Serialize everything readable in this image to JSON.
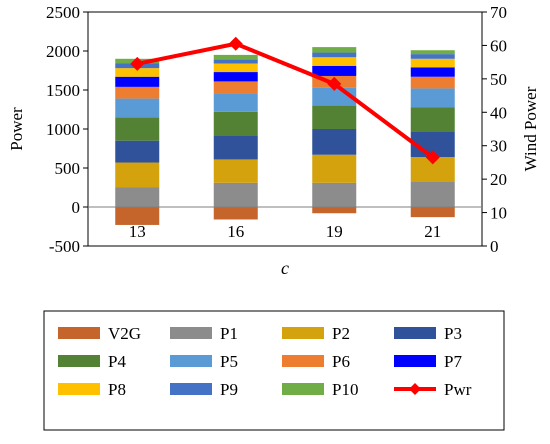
{
  "chart_data": {
    "type": "bar",
    "stacked": true,
    "categories": [
      "13",
      "16",
      "19",
      "21"
    ],
    "xlabel": "c",
    "ylabel": "Power",
    "y2label": "Wind Power",
    "ylim": [
      -500,
      2500
    ],
    "y2lim": [
      0,
      70
    ],
    "yticks": [
      "-500",
      "0",
      "500",
      "1000",
      "1500",
      "2000",
      "2500"
    ],
    "y2ticks": [
      "0",
      "10",
      "20",
      "30",
      "40",
      "50",
      "60",
      "70"
    ],
    "grid": false,
    "legend_position": "bottom",
    "series": [
      {
        "name": "V2G",
        "color": "#c5642b",
        "values": [
          -230,
          -160,
          -80,
          -130
        ]
      },
      {
        "name": "P1",
        "color": "#8c8c8c",
        "values": [
          250,
          310,
          310,
          330
        ]
      },
      {
        "name": "P2",
        "color": "#d4a20d",
        "values": [
          320,
          300,
          360,
          310
        ]
      },
      {
        "name": "P3",
        "color": "#2f529b",
        "values": [
          280,
          310,
          330,
          330
        ]
      },
      {
        "name": "P4",
        "color": "#548235",
        "values": [
          300,
          300,
          300,
          310
        ]
      },
      {
        "name": "P5",
        "color": "#5b9bd5",
        "values": [
          240,
          240,
          230,
          240
        ]
      },
      {
        "name": "P6",
        "color": "#ed7d31",
        "values": [
          150,
          150,
          150,
          150
        ]
      },
      {
        "name": "P7",
        "color": "#0000ff",
        "values": [
          130,
          120,
          130,
          120
        ]
      },
      {
        "name": "P8",
        "color": "#ffc000",
        "values": [
          110,
          110,
          110,
          110
        ]
      },
      {
        "name": "P9",
        "color": "#4472c4",
        "values": [
          60,
          50,
          60,
          60
        ]
      },
      {
        "name": "P10",
        "color": "#70ad47",
        "values": [
          60,
          60,
          70,
          50
        ]
      }
    ],
    "line_series": {
      "name": "Pwr",
      "color": "#ff0000",
      "axis": "right",
      "values": [
        54.5,
        60.5,
        48.5,
        26.5
      ]
    }
  }
}
